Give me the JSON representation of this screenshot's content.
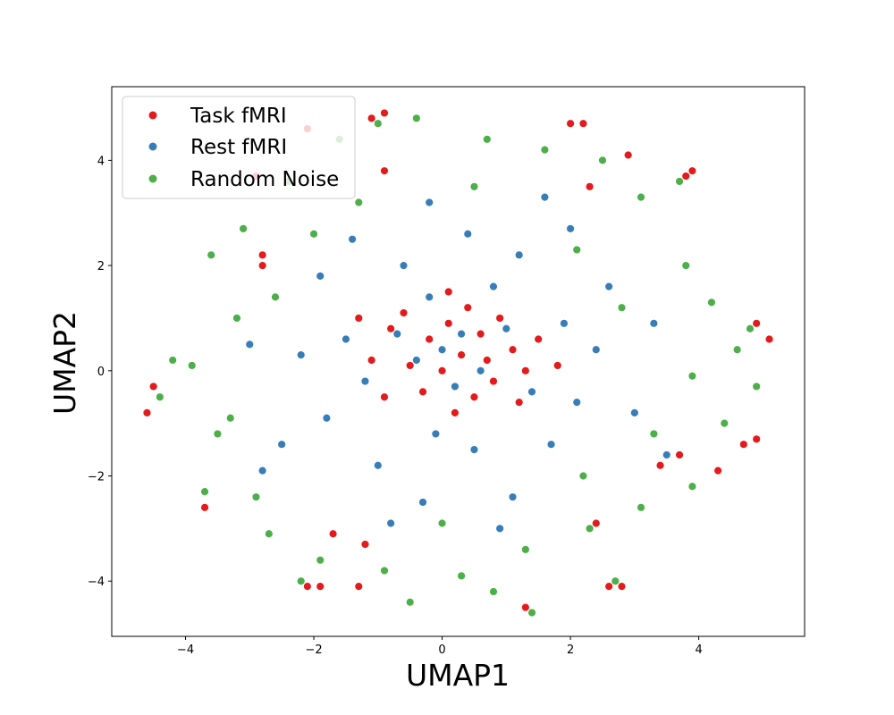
{
  "chart_data": {
    "type": "scatter",
    "title": "",
    "xlabel": "UMAP1",
    "ylabel": "UMAP2",
    "xlim": [
      -5.15,
      5.65
    ],
    "ylim": [
      -5.05,
      5.4
    ],
    "xticks": [
      -4,
      -2,
      0,
      2,
      4
    ],
    "yticks": [
      -4,
      -2,
      0,
      2,
      4
    ],
    "grid": false,
    "legend": {
      "position": "upper-left",
      "entries": [
        "Task fMRI",
        "Rest fMRI",
        "Random Noise"
      ]
    },
    "series": [
      {
        "name": "Task fMRI",
        "color": "#e41a1c",
        "points": [
          [
            -0.2,
            0.6
          ],
          [
            0.1,
            0.9
          ],
          [
            0.3,
            0.3
          ],
          [
            0.6,
            0.7
          ],
          [
            -0.5,
            0.1
          ],
          [
            0.8,
            -0.2
          ],
          [
            1.1,
            0.4
          ],
          [
            -0.8,
            0.8
          ],
          [
            0.0,
            0.0
          ],
          [
            0.4,
            1.2
          ],
          [
            -0.3,
            -0.4
          ],
          [
            0.9,
            1.0
          ],
          [
            1.3,
            0.0
          ],
          [
            -1.1,
            0.2
          ],
          [
            0.2,
            -0.8
          ],
          [
            0.7,
            0.2
          ],
          [
            -0.6,
            1.1
          ],
          [
            1.5,
            0.6
          ],
          [
            -1.3,
            1.0
          ],
          [
            0.5,
            -0.5
          ],
          [
            1.8,
            0.1
          ],
          [
            -0.9,
            -0.5
          ],
          [
            0.1,
            1.5
          ],
          [
            1.2,
            -0.6
          ],
          [
            -4.6,
            -0.8
          ],
          [
            -4.5,
            -0.3
          ],
          [
            -3.7,
            -2.6
          ],
          [
            -2.1,
            -4.1
          ],
          [
            -1.9,
            -4.1
          ],
          [
            -1.3,
            -4.1
          ],
          [
            1.3,
            -4.5
          ],
          [
            2.6,
            -4.1
          ],
          [
            2.8,
            -4.1
          ],
          [
            4.7,
            -1.4
          ],
          [
            4.9,
            -1.3
          ],
          [
            5.1,
            0.6
          ],
          [
            4.9,
            0.9
          ],
          [
            3.9,
            3.8
          ],
          [
            3.8,
            3.7
          ],
          [
            2.0,
            4.7
          ],
          [
            2.2,
            4.7
          ],
          [
            2.9,
            4.1
          ],
          [
            -0.9,
            4.9
          ],
          [
            -1.1,
            4.8
          ],
          [
            -2.1,
            4.6
          ],
          [
            -2.9,
            3.7
          ],
          [
            -2.8,
            2.0
          ],
          [
            -1.7,
            -3.1
          ],
          [
            -1.2,
            -3.3
          ],
          [
            2.4,
            -2.9
          ],
          [
            3.4,
            -1.8
          ],
          [
            3.7,
            -1.6
          ],
          [
            4.3,
            -1.9
          ],
          [
            -0.9,
            3.8
          ],
          [
            2.3,
            3.5
          ],
          [
            -2.8,
            2.2
          ]
        ]
      },
      {
        "name": "Rest fMRI",
        "color": "#377eb8",
        "points": [
          [
            0.0,
            0.4
          ],
          [
            0.3,
            0.7
          ],
          [
            -0.4,
            0.2
          ],
          [
            0.6,
            0.0
          ],
          [
            -0.7,
            0.7
          ],
          [
            1.0,
            0.8
          ],
          [
            0.2,
            -0.3
          ],
          [
            -1.2,
            -0.2
          ],
          [
            1.4,
            -0.4
          ],
          [
            -0.2,
            1.4
          ],
          [
            0.8,
            1.6
          ],
          [
            -1.5,
            0.6
          ],
          [
            1.9,
            0.9
          ],
          [
            -0.1,
            -1.2
          ],
          [
            0.5,
            -1.5
          ],
          [
            -1.8,
            -0.9
          ],
          [
            2.1,
            -0.6
          ],
          [
            -0.6,
            2.0
          ],
          [
            1.2,
            2.2
          ],
          [
            -2.2,
            0.3
          ],
          [
            2.4,
            0.4
          ],
          [
            -1.0,
            -1.8
          ],
          [
            1.7,
            -1.4
          ],
          [
            -2.5,
            -1.4
          ],
          [
            2.6,
            1.6
          ],
          [
            -1.9,
            1.8
          ],
          [
            0.4,
            2.6
          ],
          [
            -0.3,
            -2.5
          ],
          [
            1.1,
            -2.4
          ],
          [
            -2.8,
            -1.9
          ],
          [
            3.0,
            -0.8
          ],
          [
            -1.4,
            2.5
          ],
          [
            2.0,
            2.7
          ],
          [
            0.9,
            -3.0
          ],
          [
            -0.8,
            -2.9
          ],
          [
            3.3,
            0.9
          ],
          [
            -3.0,
            0.5
          ],
          [
            1.6,
            3.3
          ],
          [
            -0.2,
            3.2
          ],
          [
            3.5,
            -1.6
          ]
        ]
      },
      {
        "name": "Random Noise",
        "color": "#4daf4a",
        "points": [
          [
            -3.6,
            2.2
          ],
          [
            -3.2,
            1.0
          ],
          [
            -3.9,
            0.1
          ],
          [
            -3.5,
            -1.2
          ],
          [
            -2.9,
            -2.4
          ],
          [
            -2.7,
            -3.1
          ],
          [
            -1.9,
            -3.6
          ],
          [
            -0.9,
            -3.8
          ],
          [
            0.3,
            -3.9
          ],
          [
            0.8,
            -4.2
          ],
          [
            1.4,
            -4.6
          ],
          [
            2.3,
            -3.0
          ],
          [
            3.1,
            -2.6
          ],
          [
            3.9,
            -2.2
          ],
          [
            4.4,
            -1.0
          ],
          [
            4.9,
            -0.3
          ],
          [
            4.6,
            0.4
          ],
          [
            4.8,
            0.8
          ],
          [
            4.2,
            1.3
          ],
          [
            3.8,
            2.0
          ],
          [
            3.7,
            3.6
          ],
          [
            3.1,
            3.3
          ],
          [
            2.5,
            4.0
          ],
          [
            1.6,
            4.2
          ],
          [
            0.7,
            4.4
          ],
          [
            -0.4,
            4.8
          ],
          [
            -1.0,
            4.7
          ],
          [
            -1.6,
            4.4
          ],
          [
            -2.4,
            3.6
          ],
          [
            -3.1,
            2.7
          ],
          [
            -4.4,
            -0.5
          ],
          [
            -4.2,
            0.2
          ],
          [
            -2.2,
            -4.0
          ],
          [
            -0.5,
            -4.4
          ],
          [
            1.3,
            -3.4
          ],
          [
            2.7,
            -4.0
          ],
          [
            3.3,
            -1.2
          ],
          [
            2.8,
            1.2
          ],
          [
            -2.6,
            1.4
          ],
          [
            -1.3,
            3.2
          ],
          [
            0.5,
            3.5
          ],
          [
            2.1,
            2.3
          ],
          [
            3.9,
            -0.1
          ],
          [
            -3.7,
            -2.3
          ],
          [
            -2.0,
            2.6
          ],
          [
            0.0,
            -2.9
          ],
          [
            2.2,
            -2.0
          ],
          [
            -3.3,
            -0.9
          ]
        ]
      }
    ]
  }
}
